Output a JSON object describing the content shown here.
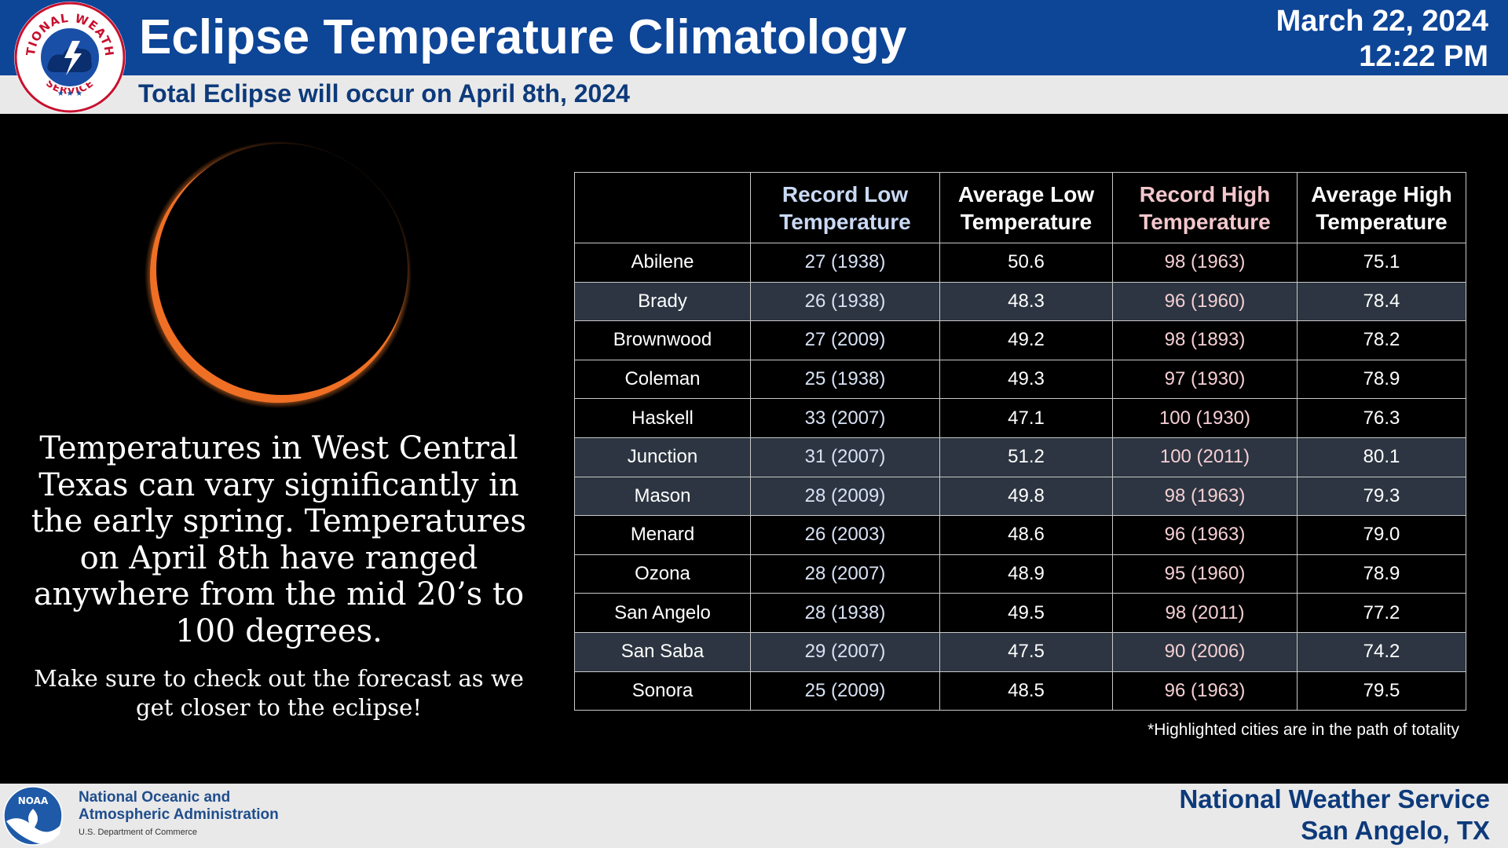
{
  "header": {
    "title": "Eclipse Temperature Climatology",
    "subtitle": "Total Eclipse will occur on April 8th, 2024",
    "date": "March 22, 2024",
    "time": "12:22 PM",
    "logo_text_top": "NATIONAL WEATHER",
    "logo_text_bottom": "SERVICE"
  },
  "colors": {
    "header_bg": "#0d4597",
    "subbar_bg": "#e9e9ea",
    "record_low_header": "#c9d9f5",
    "record_high_header": "#f3c7cc",
    "highlight_row": "#2c3541",
    "eclipse_ring": "#f07a2c"
  },
  "icons": [
    "nws-logo-icon",
    "eclipse-image",
    "noaa-logo-icon"
  ],
  "left_panel": {
    "paragraph": "Temperatures in West Central Texas can vary significantly in the early spring. Temperatures on April 8th have ranged anywhere from the mid 20’s to 100 degrees.",
    "note": "Make sure to check out the forecast as we get closer to the eclipse!"
  },
  "table": {
    "headers": [
      "",
      "Record Low Temperature",
      "Average Low Temperature",
      "Record High Temperature",
      "Average High Temperature"
    ],
    "rows": [
      {
        "city": "Abilene",
        "record_low": "27 (1938)",
        "avg_low": "50.6",
        "record_high": "98 (1963)",
        "avg_high": "75.1",
        "highlighted": false
      },
      {
        "city": "Brady",
        "record_low": "26 (1938)",
        "avg_low": "48.3",
        "record_high": "96 (1960)",
        "avg_high": "78.4",
        "highlighted": true
      },
      {
        "city": "Brownwood",
        "record_low": "27 (2009)",
        "avg_low": "49.2",
        "record_high": "98 (1893)",
        "avg_high": "78.2",
        "highlighted": false
      },
      {
        "city": "Coleman",
        "record_low": "25 (1938)",
        "avg_low": "49.3",
        "record_high": "97 (1930)",
        "avg_high": "78.9",
        "highlighted": false
      },
      {
        "city": "Haskell",
        "record_low": "33 (2007)",
        "avg_low": "47.1",
        "record_high": "100 (1930)",
        "avg_high": "76.3",
        "highlighted": false
      },
      {
        "city": "Junction",
        "record_low": "31 (2007)",
        "avg_low": "51.2",
        "record_high": "100 (2011)",
        "avg_high": "80.1",
        "highlighted": true
      },
      {
        "city": "Mason",
        "record_low": "28 (2009)",
        "avg_low": "49.8",
        "record_high": "98 (1963)",
        "avg_high": "79.3",
        "highlighted": true
      },
      {
        "city": "Menard",
        "record_low": "26 (2003)",
        "avg_low": "48.6",
        "record_high": "96 (1963)",
        "avg_high": "79.0",
        "highlighted": false
      },
      {
        "city": "Ozona",
        "record_low": "28 (2007)",
        "avg_low": "48.9",
        "record_high": "95 (1960)",
        "avg_high": "78.9",
        "highlighted": false
      },
      {
        "city": "San Angelo",
        "record_low": "28 (1938)",
        "avg_low": "49.5",
        "record_high": "98 (2011)",
        "avg_high": "77.2",
        "highlighted": false
      },
      {
        "city": "San Saba",
        "record_low": "29 (2007)",
        "avg_low": "47.5",
        "record_high": "90 (2006)",
        "avg_high": "74.2",
        "highlighted": true
      },
      {
        "city": "Sonora",
        "record_low": "25 (2009)",
        "avg_low": "48.5",
        "record_high": "96 (1963)",
        "avg_high": "79.5",
        "highlighted": false
      }
    ],
    "footnote": "*Highlighted cities are in the path of totality"
  },
  "footer": {
    "noaa_line1": "National Oceanic and",
    "noaa_line2": "Atmospheric Administration",
    "noaa_line3": "U.S. Department of Commerce",
    "noaa_logo_text": "NOAA",
    "nws_line1": "National Weather Service",
    "nws_line2": "San Angelo, TX"
  }
}
